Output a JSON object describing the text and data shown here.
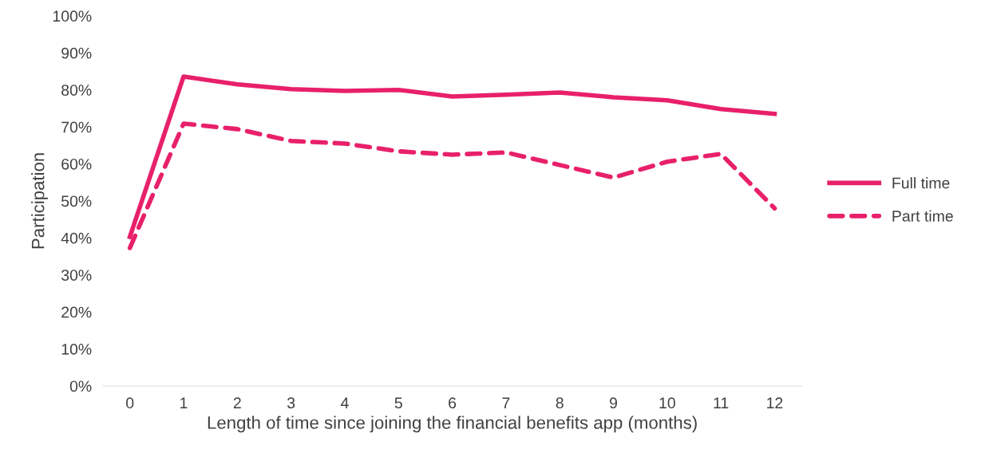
{
  "chart_data": {
    "type": "line",
    "xlabel": "Length of time since joining the financial benefits app (months)",
    "ylabel": "Participation",
    "categories": [
      "0",
      "1",
      "2",
      "3",
      "4",
      "5",
      "6",
      "7",
      "8",
      "9",
      "10",
      "11",
      "12"
    ],
    "series": [
      {
        "name": "Full time",
        "color": "#e8206a",
        "line_style": "solid",
        "values": [
          40.3,
          83.6,
          81.5,
          80.2,
          79.7,
          80.0,
          78.2,
          78.7,
          79.3,
          78.0,
          77.2,
          74.8,
          73.5
        ]
      },
      {
        "name": "Part time",
        "color": "#e8206a",
        "line_style": "dashed",
        "values": [
          37.3,
          70.9,
          69.4,
          66.2,
          65.5,
          63.4,
          62.5,
          63.1,
          59.7,
          56.3,
          60.6,
          62.7,
          48.0
        ]
      }
    ],
    "ylim": [
      0,
      100
    ],
    "yticks": [
      {
        "value": 0,
        "label": "0%"
      },
      {
        "value": 10,
        "label": "10%"
      },
      {
        "value": 20,
        "label": "20%"
      },
      {
        "value": 30,
        "label": "30%"
      },
      {
        "value": 40,
        "label": "40%"
      },
      {
        "value": 50,
        "label": "50%"
      },
      {
        "value": 60,
        "label": "60%"
      },
      {
        "value": 70,
        "label": "70%"
      },
      {
        "value": 80,
        "label": "80%"
      },
      {
        "value": 90,
        "label": "90%"
      },
      {
        "value": 100,
        "label": "100%"
      }
    ],
    "grid": false,
    "legend": "right",
    "marker": "none"
  }
}
